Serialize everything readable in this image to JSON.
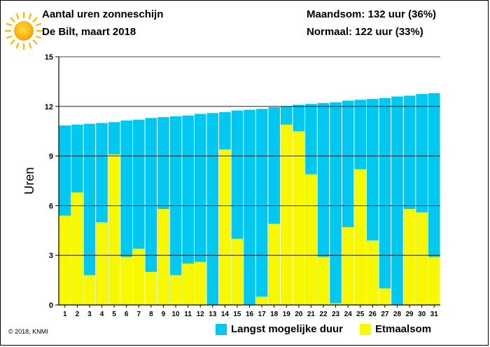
{
  "header": {
    "title": "Aantal uren zonneschijn",
    "subtitle": "De Bilt, maart 2018",
    "stat_month": "Maandsom: 132 uur (36%)",
    "stat_normal": "Normaal: 122 uur (33%)"
  },
  "footer": {
    "copyright": "© 2018, KNMI"
  },
  "icon": "sun-icon",
  "colors": {
    "max": "#00c8f0",
    "actual": "#f8f800",
    "grid": "#000000"
  },
  "chart_data": {
    "type": "bar",
    "ylabel": "Uren",
    "ylim": [
      0,
      15
    ],
    "yticks": [
      0,
      3,
      6,
      9,
      12,
      15
    ],
    "categories": [
      "1",
      "2",
      "3",
      "4",
      "5",
      "6",
      "7",
      "8",
      "9",
      "10",
      "11",
      "12",
      "13",
      "14",
      "15",
      "16",
      "17",
      "18",
      "19",
      "20",
      "21",
      "22",
      "23",
      "24",
      "25",
      "26",
      "27",
      "28",
      "29",
      "30",
      "31"
    ],
    "series": [
      {
        "name": "Langst mogelijke duur",
        "values": [
          10.85,
          10.9,
          10.95,
          11.0,
          11.05,
          11.15,
          11.2,
          11.3,
          11.35,
          11.4,
          11.45,
          11.55,
          11.6,
          11.65,
          11.75,
          11.8,
          11.85,
          11.95,
          12.0,
          12.1,
          12.15,
          12.2,
          12.25,
          12.35,
          12.4,
          12.45,
          12.5,
          12.6,
          12.65,
          12.75,
          12.8
        ]
      },
      {
        "name": "Etmaalsom",
        "values": [
          5.4,
          6.8,
          1.8,
          5.0,
          9.1,
          2.9,
          3.4,
          2.0,
          5.8,
          1.8,
          2.5,
          2.6,
          0,
          9.4,
          4.0,
          0,
          0.5,
          4.9,
          10.9,
          10.5,
          7.9,
          2.9,
          0.1,
          4.7,
          8.2,
          3.9,
          1.0,
          0,
          5.8,
          5.6,
          2.9
        ]
      }
    ],
    "legend_position": "bottom-right",
    "grid": true
  }
}
